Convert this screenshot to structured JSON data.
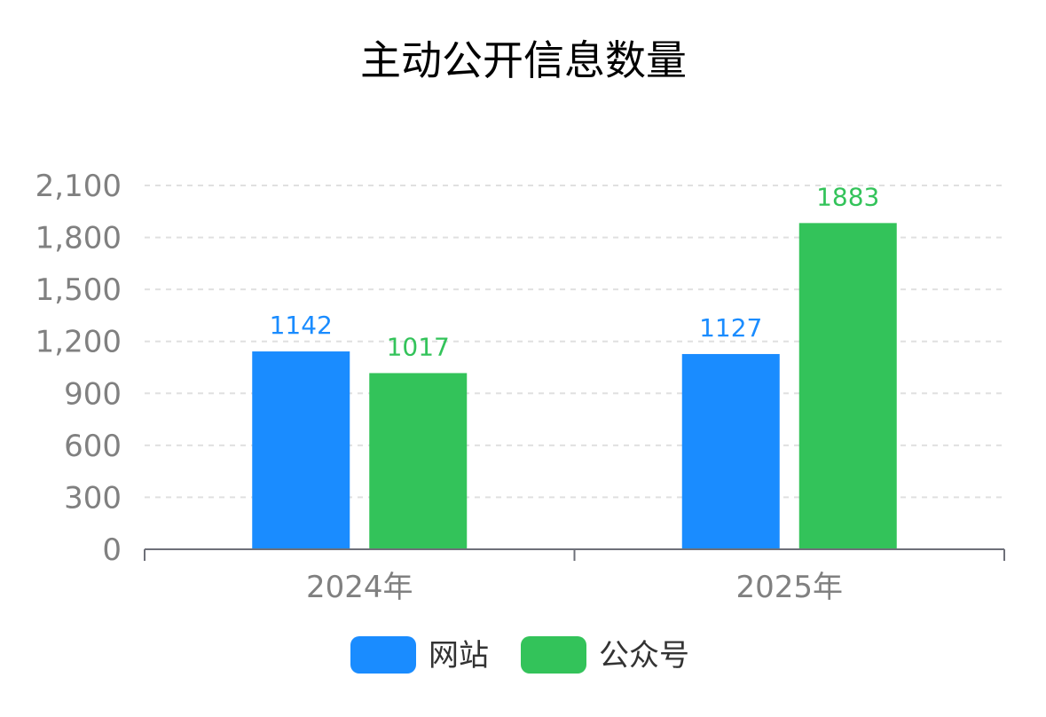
{
  "chart_data": {
    "type": "bar",
    "title": "主动公开信息数量",
    "xlabel": "",
    "ylabel": "",
    "categories": [
      "2024年",
      "2025年"
    ],
    "series": [
      {
        "name": "网站",
        "values": [
          1142,
          1127
        ],
        "color": "#1a8cff"
      },
      {
        "name": "公众号",
        "values": [
          1017,
          1883
        ],
        "color": "#33c35a"
      }
    ],
    "ylim": [
      0,
      2100
    ],
    "yticks": [
      0,
      300,
      600,
      900,
      1200,
      1500,
      1800,
      2100
    ],
    "ytick_labels": [
      "0",
      "300",
      "600",
      "900",
      "1,200",
      "1,500",
      "1,800",
      "2,100"
    ],
    "grid": true,
    "data_labels": true,
    "legend_position": "bottom-center"
  },
  "colors": {
    "axis_text": "#808080",
    "axis_line": "#6e7079",
    "grid": "#e0e0e0",
    "title": "#000000"
  }
}
